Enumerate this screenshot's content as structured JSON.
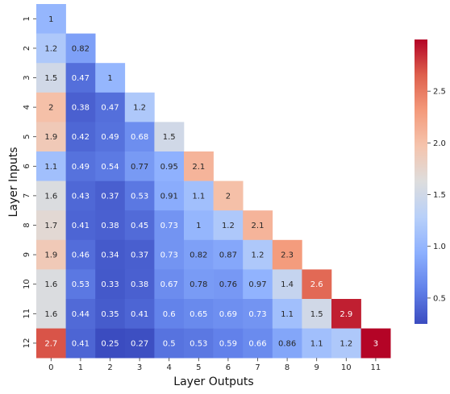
{
  "chart_data": {
    "type": "heatmap",
    "xlabel": "Layer Outputs",
    "ylabel": "Layer Inputs",
    "x_ticks": [
      "0",
      "1",
      "2",
      "3",
      "4",
      "5",
      "6",
      "7",
      "8",
      "9",
      "10",
      "11"
    ],
    "y_ticks": [
      "1",
      "2",
      "3",
      "4",
      "5",
      "6",
      "7",
      "8",
      "9",
      "10",
      "11",
      "12"
    ],
    "mask": "upper-triangle",
    "colormap": "coolwarm",
    "vmin": 0.25,
    "vmax": 3.0,
    "colorbar_ticks": [
      "0.5",
      "1.0",
      "1.5",
      "2.0",
      "2.5"
    ],
    "values": [
      [
        "1"
      ],
      [
        "1.2",
        "0.82"
      ],
      [
        "1.5",
        "0.47",
        "1"
      ],
      [
        "2",
        "0.38",
        "0.47",
        "1.2"
      ],
      [
        "1.9",
        "0.42",
        "0.49",
        "0.68",
        "1.5"
      ],
      [
        "1.1",
        "0.49",
        "0.54",
        "0.77",
        "0.95",
        "2.1"
      ],
      [
        "1.6",
        "0.43",
        "0.37",
        "0.53",
        "0.91",
        "1.1",
        "2"
      ],
      [
        "1.7",
        "0.41",
        "0.38",
        "0.45",
        "0.73",
        "1",
        "1.2",
        "2.1"
      ],
      [
        "1.9",
        "0.46",
        "0.34",
        "0.37",
        "0.73",
        "0.82",
        "0.87",
        "1.2",
        "2.3"
      ],
      [
        "1.6",
        "0.53",
        "0.33",
        "0.38",
        "0.67",
        "0.78",
        "0.76",
        "0.97",
        "1.4",
        "2.6"
      ],
      [
        "1.6",
        "0.44",
        "0.35",
        "0.41",
        "0.6",
        "0.65",
        "0.69",
        "0.73",
        "1.1",
        "1.5",
        "2.9"
      ],
      [
        "2.7",
        "0.41",
        "0.25",
        "0.27",
        "0.5",
        "0.53",
        "0.59",
        "0.66",
        "0.86",
        "1.1",
        "1.2",
        "3"
      ]
    ]
  }
}
